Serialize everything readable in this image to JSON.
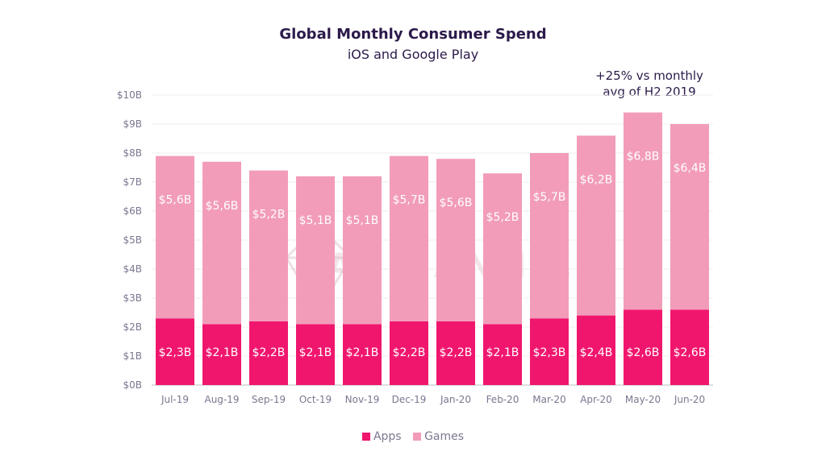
{
  "chart_data": {
    "type": "bar",
    "stacked": true,
    "title": "Global Monthly Consumer Spend",
    "subtitle": "iOS and Google Play",
    "categories": [
      "Jul-19",
      "Aug-19",
      "Sep-19",
      "Oct-19",
      "Nov-19",
      "Dec-19",
      "Jan-20",
      "Feb-20",
      "Mar-20",
      "Apr-20",
      "May-20",
      "Jun-20"
    ],
    "series": [
      {
        "name": "Apps",
        "color": "#f0166e",
        "values": [
          2.3,
          2.1,
          2.2,
          2.1,
          2.1,
          2.2,
          2.2,
          2.1,
          2.3,
          2.4,
          2.6,
          2.6
        ],
        "labels": [
          "$2,3B",
          "$2,1B",
          "$2,2B",
          "$2,1B",
          "$2,1B",
          "$2,2B",
          "$2,2B",
          "$2,1B",
          "$2,3B",
          "$2,4B",
          "$2,6B",
          "$2,6B"
        ]
      },
      {
        "name": "Games",
        "color": "#f29cba",
        "values": [
          5.6,
          5.6,
          5.2,
          5.1,
          5.1,
          5.7,
          5.6,
          5.2,
          5.7,
          6.2,
          6.8,
          6.4
        ],
        "labels": [
          "$5,6B",
          "$5,6B",
          "$5,2B",
          "$5,1B",
          "$5,1B",
          "$5,7B",
          "$5,6B",
          "$5,2B",
          "$5,7B",
          "$6,2B",
          "$6,8B",
          "$6,4B"
        ]
      }
    ],
    "ylim": [
      0,
      10
    ],
    "yticks": [
      "$0B",
      "$1B",
      "$2B",
      "$3B",
      "$4B",
      "$5B",
      "$6B",
      "$7B",
      "$8B",
      "$9B",
      "$10B"
    ],
    "xlabel": "",
    "ylabel": "",
    "grid": true,
    "legend_position": "bottom-center",
    "annotation": "+25% vs monthly\navg of H2 2019",
    "watermark": "APP ANNIE"
  }
}
